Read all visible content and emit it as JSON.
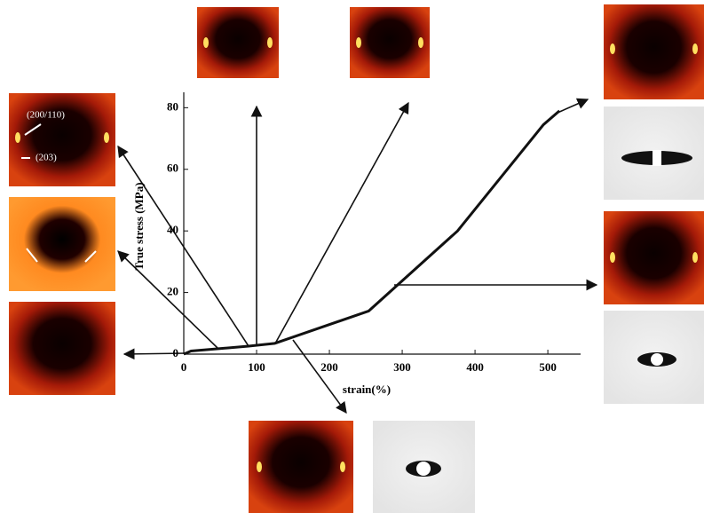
{
  "chart_data": {
    "type": "line",
    "x_label": "strain(%)",
    "y_label": "True stress (MPa)",
    "x": [
      0,
      10,
      89,
      125,
      254,
      376,
      494,
      516
    ],
    "values": [
      0,
      1,
      2.6,
      3.5,
      14,
      40,
      74.5,
      79
    ],
    "color": "#111111",
    "xlim": [
      0,
      545
    ],
    "ylim": [
      0,
      85
    ],
    "xticks": [
      0,
      100,
      200,
      300,
      400,
      500
    ],
    "yticks": [
      0,
      20,
      40,
      60,
      80
    ],
    "annotations": [
      "(200/110)",
      "(203)"
    ]
  }
}
